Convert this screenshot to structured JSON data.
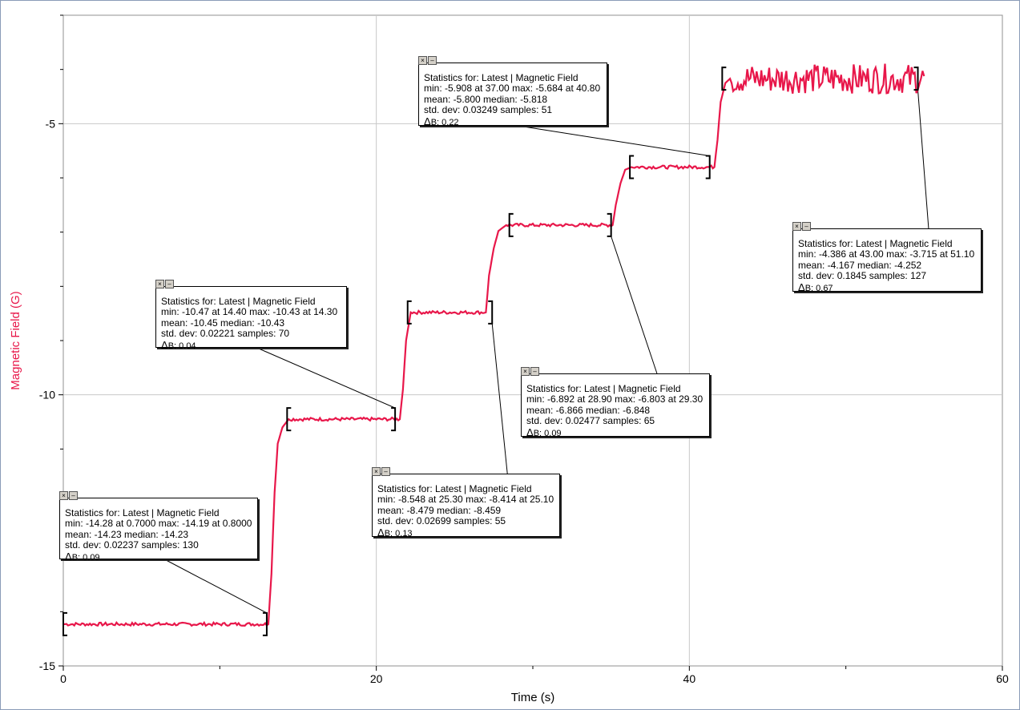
{
  "chart_data": {
    "type": "line",
    "xlabel": "Time (s)",
    "ylabel": "Magnetic Field (G)",
    "xlim": [
      0,
      60
    ],
    "ylim": [
      -15,
      -3
    ],
    "x_ticks": [
      "0",
      "20",
      "40",
      "60"
    ],
    "y_ticks": [
      "-5",
      "-10",
      "-15"
    ],
    "grid": true,
    "series": [
      {
        "color": "#e8174a",
        "x": [
          0,
          13.1,
          13.3,
          13.5,
          13.7,
          14.0,
          14.4,
          21.5,
          21.7,
          21.9,
          22.2,
          27.0,
          27.2,
          27.5,
          27.8,
          28.3,
          35.1,
          35.3,
          35.6,
          35.9,
          36.3,
          41.6,
          41.8,
          42.0,
          42.3,
          42.6,
          55.0
        ],
        "y": [
          -14.23,
          -14.23,
          -13.3,
          -11.8,
          -10.9,
          -10.6,
          -10.45,
          -10.45,
          -9.9,
          -9.0,
          -8.48,
          -8.48,
          -7.8,
          -7.3,
          -6.98,
          -6.87,
          -6.87,
          -6.5,
          -6.1,
          -5.85,
          -5.8,
          -5.8,
          -5.3,
          -4.6,
          -4.25,
          -4.17,
          -4.17
        ]
      }
    ],
    "annotations": [
      {
        "title": "Statistics for: Latest | Magnetic Field",
        "line1": "min: -14.28 at 0.7000 max: -14.19 at 0.8000",
        "line2": "mean: -14.23 median: -14.23",
        "line3": "std. dev: 0.02237 samples: 130",
        "delta_sym": "Δ",
        "delta_sub": "B",
        "delta_val": ": 0.09",
        "range": [
          0,
          13.0
        ]
      },
      {
        "title": "Statistics for: Latest | Magnetic Field",
        "line1": "min: -10.47 at 14.40 max: -10.43 at 14.30",
        "line2": "mean: -10.45 median: -10.43",
        "line3": "std. dev: 0.02221 samples: 70",
        "delta_sym": "Δ",
        "delta_sub": "B",
        "delta_val": ": 0.04",
        "range": [
          14.3,
          21.2
        ]
      },
      {
        "title": "Statistics for: Latest | Magnetic Field",
        "line1": "min: -8.548 at 25.30 max: -8.414 at 25.10",
        "line2": "mean: -8.479 median: -8.459",
        "line3": "std. dev: 0.02699 samples: 55",
        "delta_sym": "Δ",
        "delta_sub": "B",
        "delta_val": ": 0.13",
        "range": [
          22.0,
          27.4
        ]
      },
      {
        "title": "Statistics for: Latest | Magnetic Field",
        "line1": "min: -6.892 at 28.90 max: -6.803 at 29.30",
        "line2": "mean: -6.866 median: -6.848",
        "line3": "std. dev: 0.02477 samples: 65",
        "delta_sym": "Δ",
        "delta_sub": "B",
        "delta_val": ": 0.09",
        "range": [
          28.5,
          35.0
        ]
      },
      {
        "title": "Statistics for: Latest | Magnetic Field",
        "line1": "min: -5.908 at 37.00 max: -5.684 at 40.80",
        "line2": "mean: -5.800 median: -5.818",
        "line3": "std. dev: 0.03249 samples: 51",
        "delta_sym": "Δ",
        "delta_sub": "B",
        "delta_val": ": 0.22",
        "range": [
          36.2,
          41.3
        ]
      },
      {
        "title": "Statistics for: Latest | Magnetic Field",
        "line1": "min: -4.386 at 43.00 max: -3.715 at 51.10",
        "line2": "mean: -4.167 median: -4.252",
        "line3": "std. dev: 0.1845 samples: 127",
        "delta_sym": "Δ",
        "delta_sub": "B",
        "delta_val": ": 0.67",
        "range": [
          42.1,
          54.6
        ]
      }
    ]
  },
  "box_buttons": {
    "close": "×",
    "minimize": "–"
  }
}
